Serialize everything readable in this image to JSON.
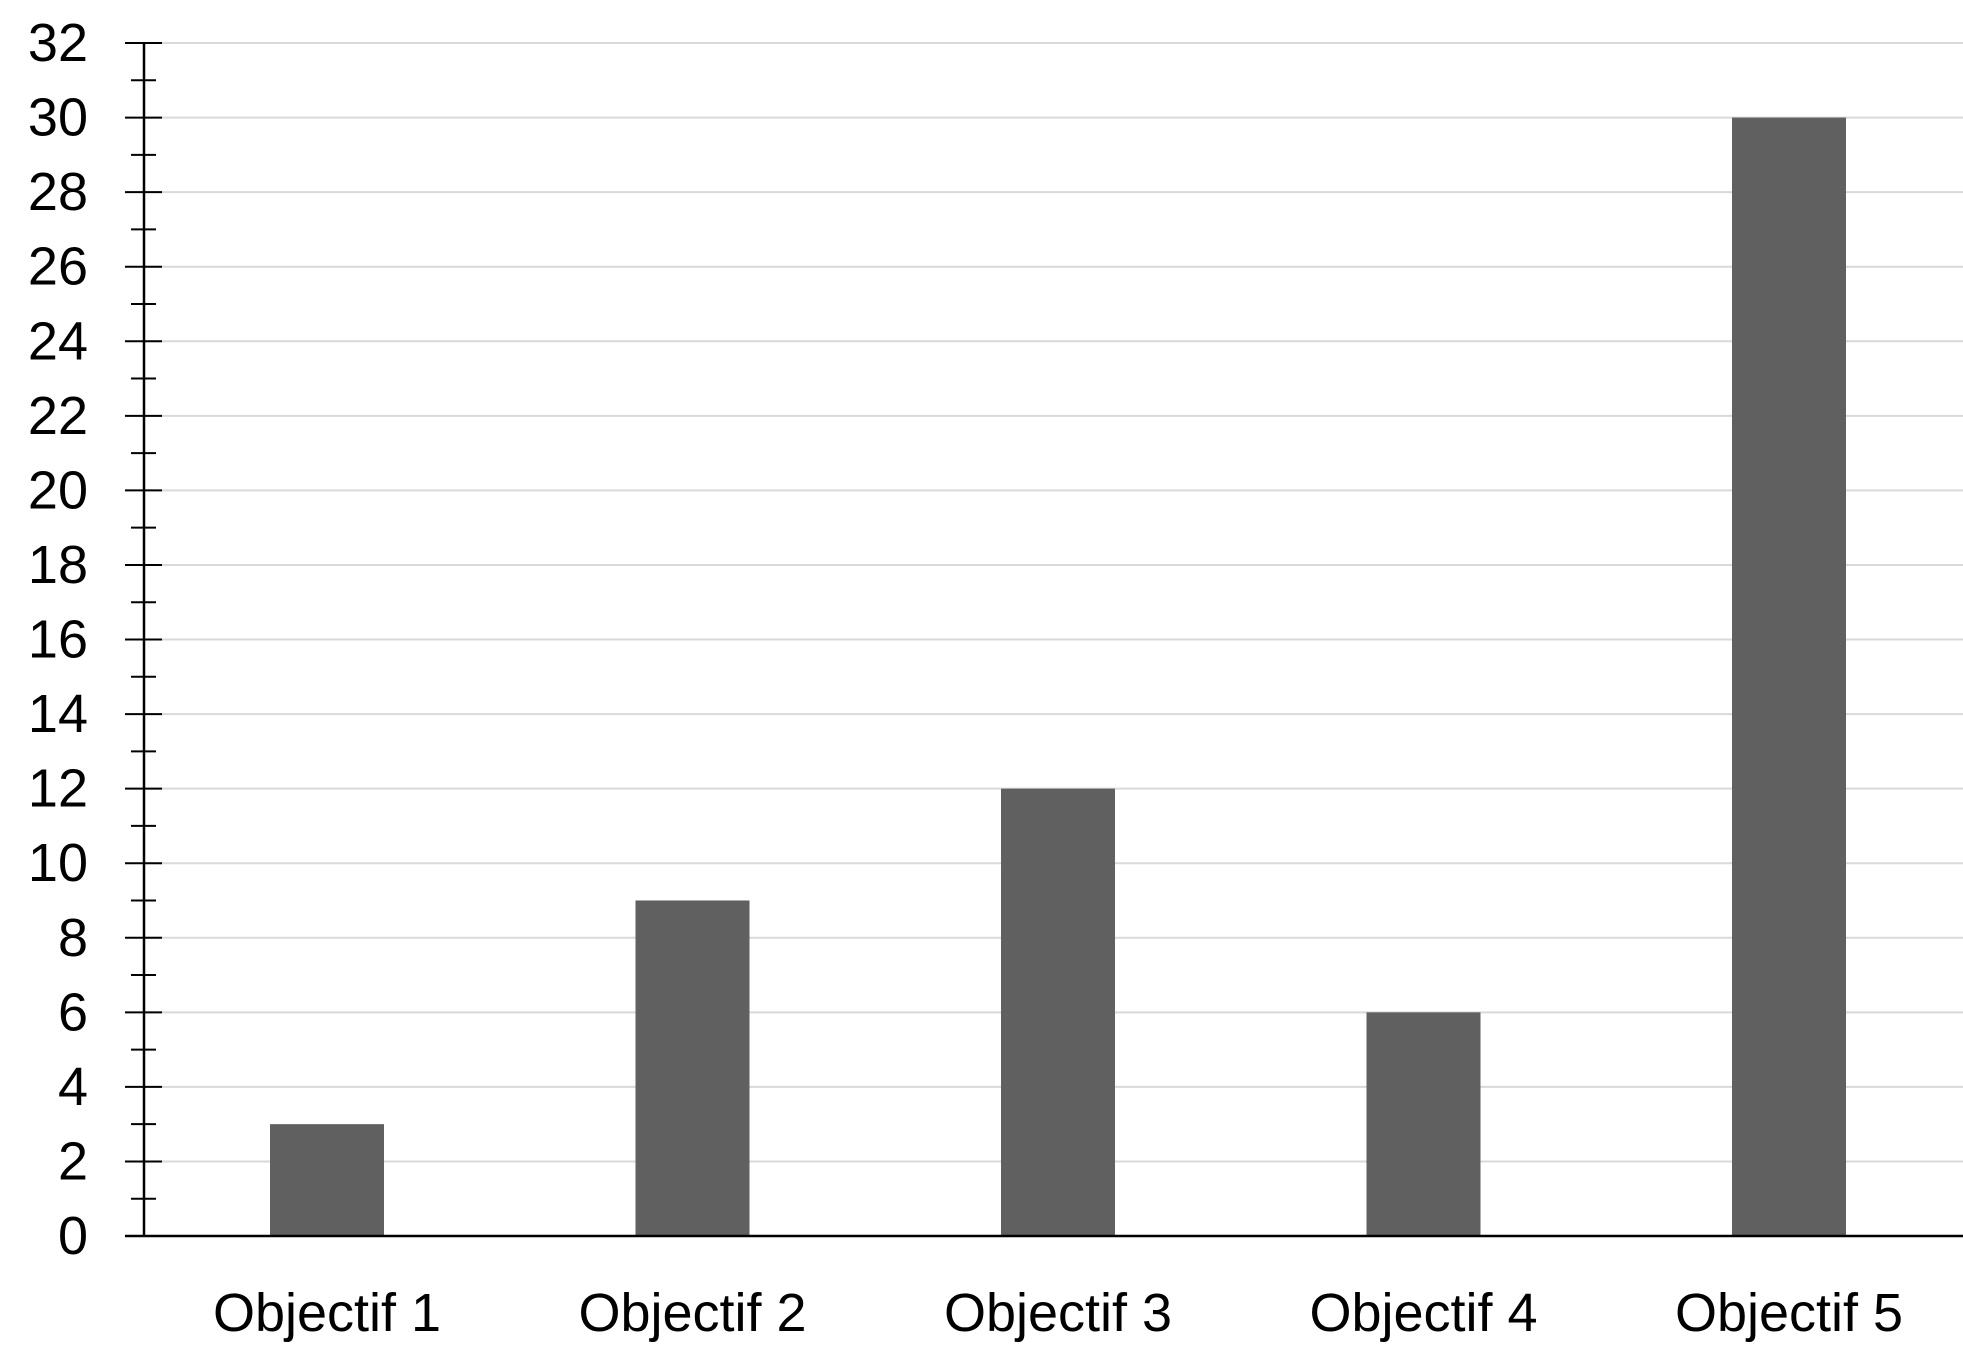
{
  "chart_data": {
    "type": "bar",
    "title": "",
    "xlabel": "",
    "ylabel": "",
    "categories": [
      "Objectif 1",
      "Objectif 2",
      "Objectif 3",
      "Objectif 4",
      "Objectif 5"
    ],
    "series": [
      {
        "values": [
          3,
          9,
          12,
          6,
          30
        ]
      }
    ],
    "ylim": [
      0,
      32
    ],
    "yticks": [
      "0",
      "2",
      "4",
      "6",
      "8",
      "10",
      "12",
      "14",
      "16",
      "18",
      "20",
      "22",
      "24",
      "26",
      "28",
      "30",
      "32"
    ],
    "minor_tick_step": 1,
    "grid": true,
    "legend": "none",
    "colors": {
      "bar": "#606060",
      "grid": "#d9d9d9",
      "axis": "#000000"
    }
  }
}
